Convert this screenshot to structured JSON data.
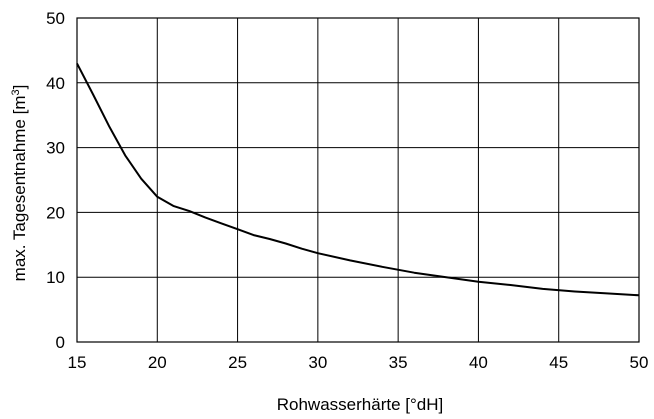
{
  "chart_data": {
    "type": "line",
    "title": "",
    "xlabel": "Rohwasserhärte [°dH]",
    "ylabel": "max. Tagesentnahme [m",
    "ylabel_sup": "3",
    "ylabel_end": "]",
    "xlim": [
      15,
      50
    ],
    "ylim": [
      0,
      50
    ],
    "x_ticks": [
      15,
      20,
      25,
      30,
      35,
      40,
      45,
      50
    ],
    "y_ticks": [
      0,
      10,
      20,
      30,
      40,
      50
    ],
    "grid": true,
    "legend": "none",
    "series": [
      {
        "color": "#000000",
        "x": [
          15,
          16,
          17,
          18,
          19,
          20,
          21,
          22,
          23,
          24,
          25,
          26,
          27,
          28,
          29,
          30,
          32,
          34,
          36,
          38,
          40,
          42,
          44,
          46,
          48,
          50
        ],
        "y": [
          43,
          38.2,
          33.3,
          28.8,
          25.2,
          22.4,
          21.0,
          20.2,
          19.2,
          18.3,
          17.4,
          16.5,
          15.9,
          15.2,
          14.4,
          13.7,
          12.6,
          11.6,
          10.7,
          10.0,
          9.3,
          8.8,
          8.2,
          7.8,
          7.5,
          7.2
        ]
      }
    ]
  }
}
